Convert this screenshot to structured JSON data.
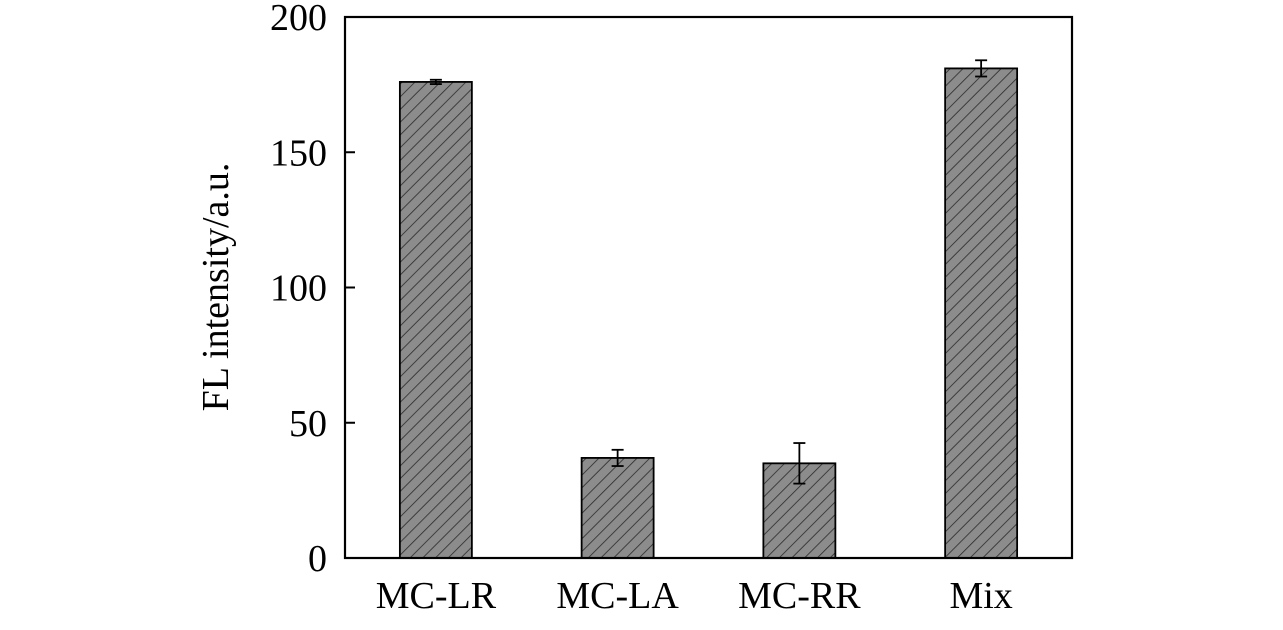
{
  "chart_data": {
    "type": "bar",
    "title": "",
    "xlabel": "",
    "ylabel": "FL intensity/a.u.",
    "categories": [
      "MC-LR",
      "MC-LA",
      "MC-RR",
      "Mix"
    ],
    "values": [
      176,
      37,
      35,
      181
    ],
    "errors": [
      0.8,
      3,
      7.5,
      3
    ],
    "ylim": [
      0,
      200
    ],
    "yticks": [
      0,
      50,
      100,
      150,
      200
    ],
    "grid": false,
    "legend": "none",
    "bar_color": "#8c8c8c",
    "hatch": "diagonal"
  }
}
